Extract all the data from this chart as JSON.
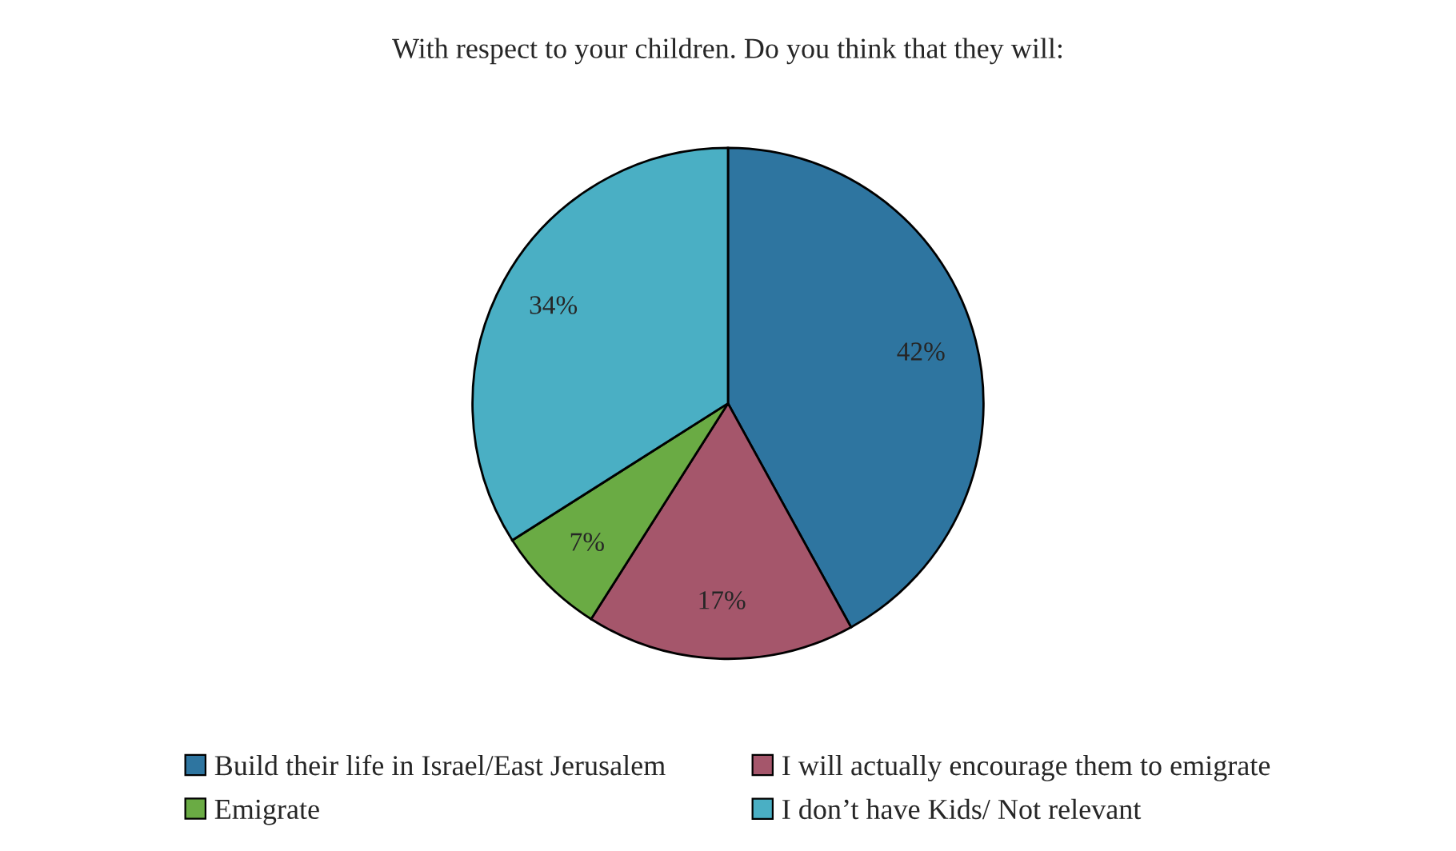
{
  "chart_data": {
    "type": "pie",
    "title": "With respect to your children. Do you think that they will:",
    "categories": [
      "Build their life in Israel/East Jerusalem",
      "I will actually encourage them to emigrate",
      "Emigrate",
      "I don’t have Kids/ Not relevant"
    ],
    "values": [
      42,
      17,
      7,
      34
    ],
    "value_labels": [
      "42%",
      "17%",
      "7%",
      "34%"
    ],
    "colors": [
      "#2e75a0",
      "#a5566b",
      "#6aab44",
      "#4aafc4"
    ],
    "legend": "bottom"
  }
}
